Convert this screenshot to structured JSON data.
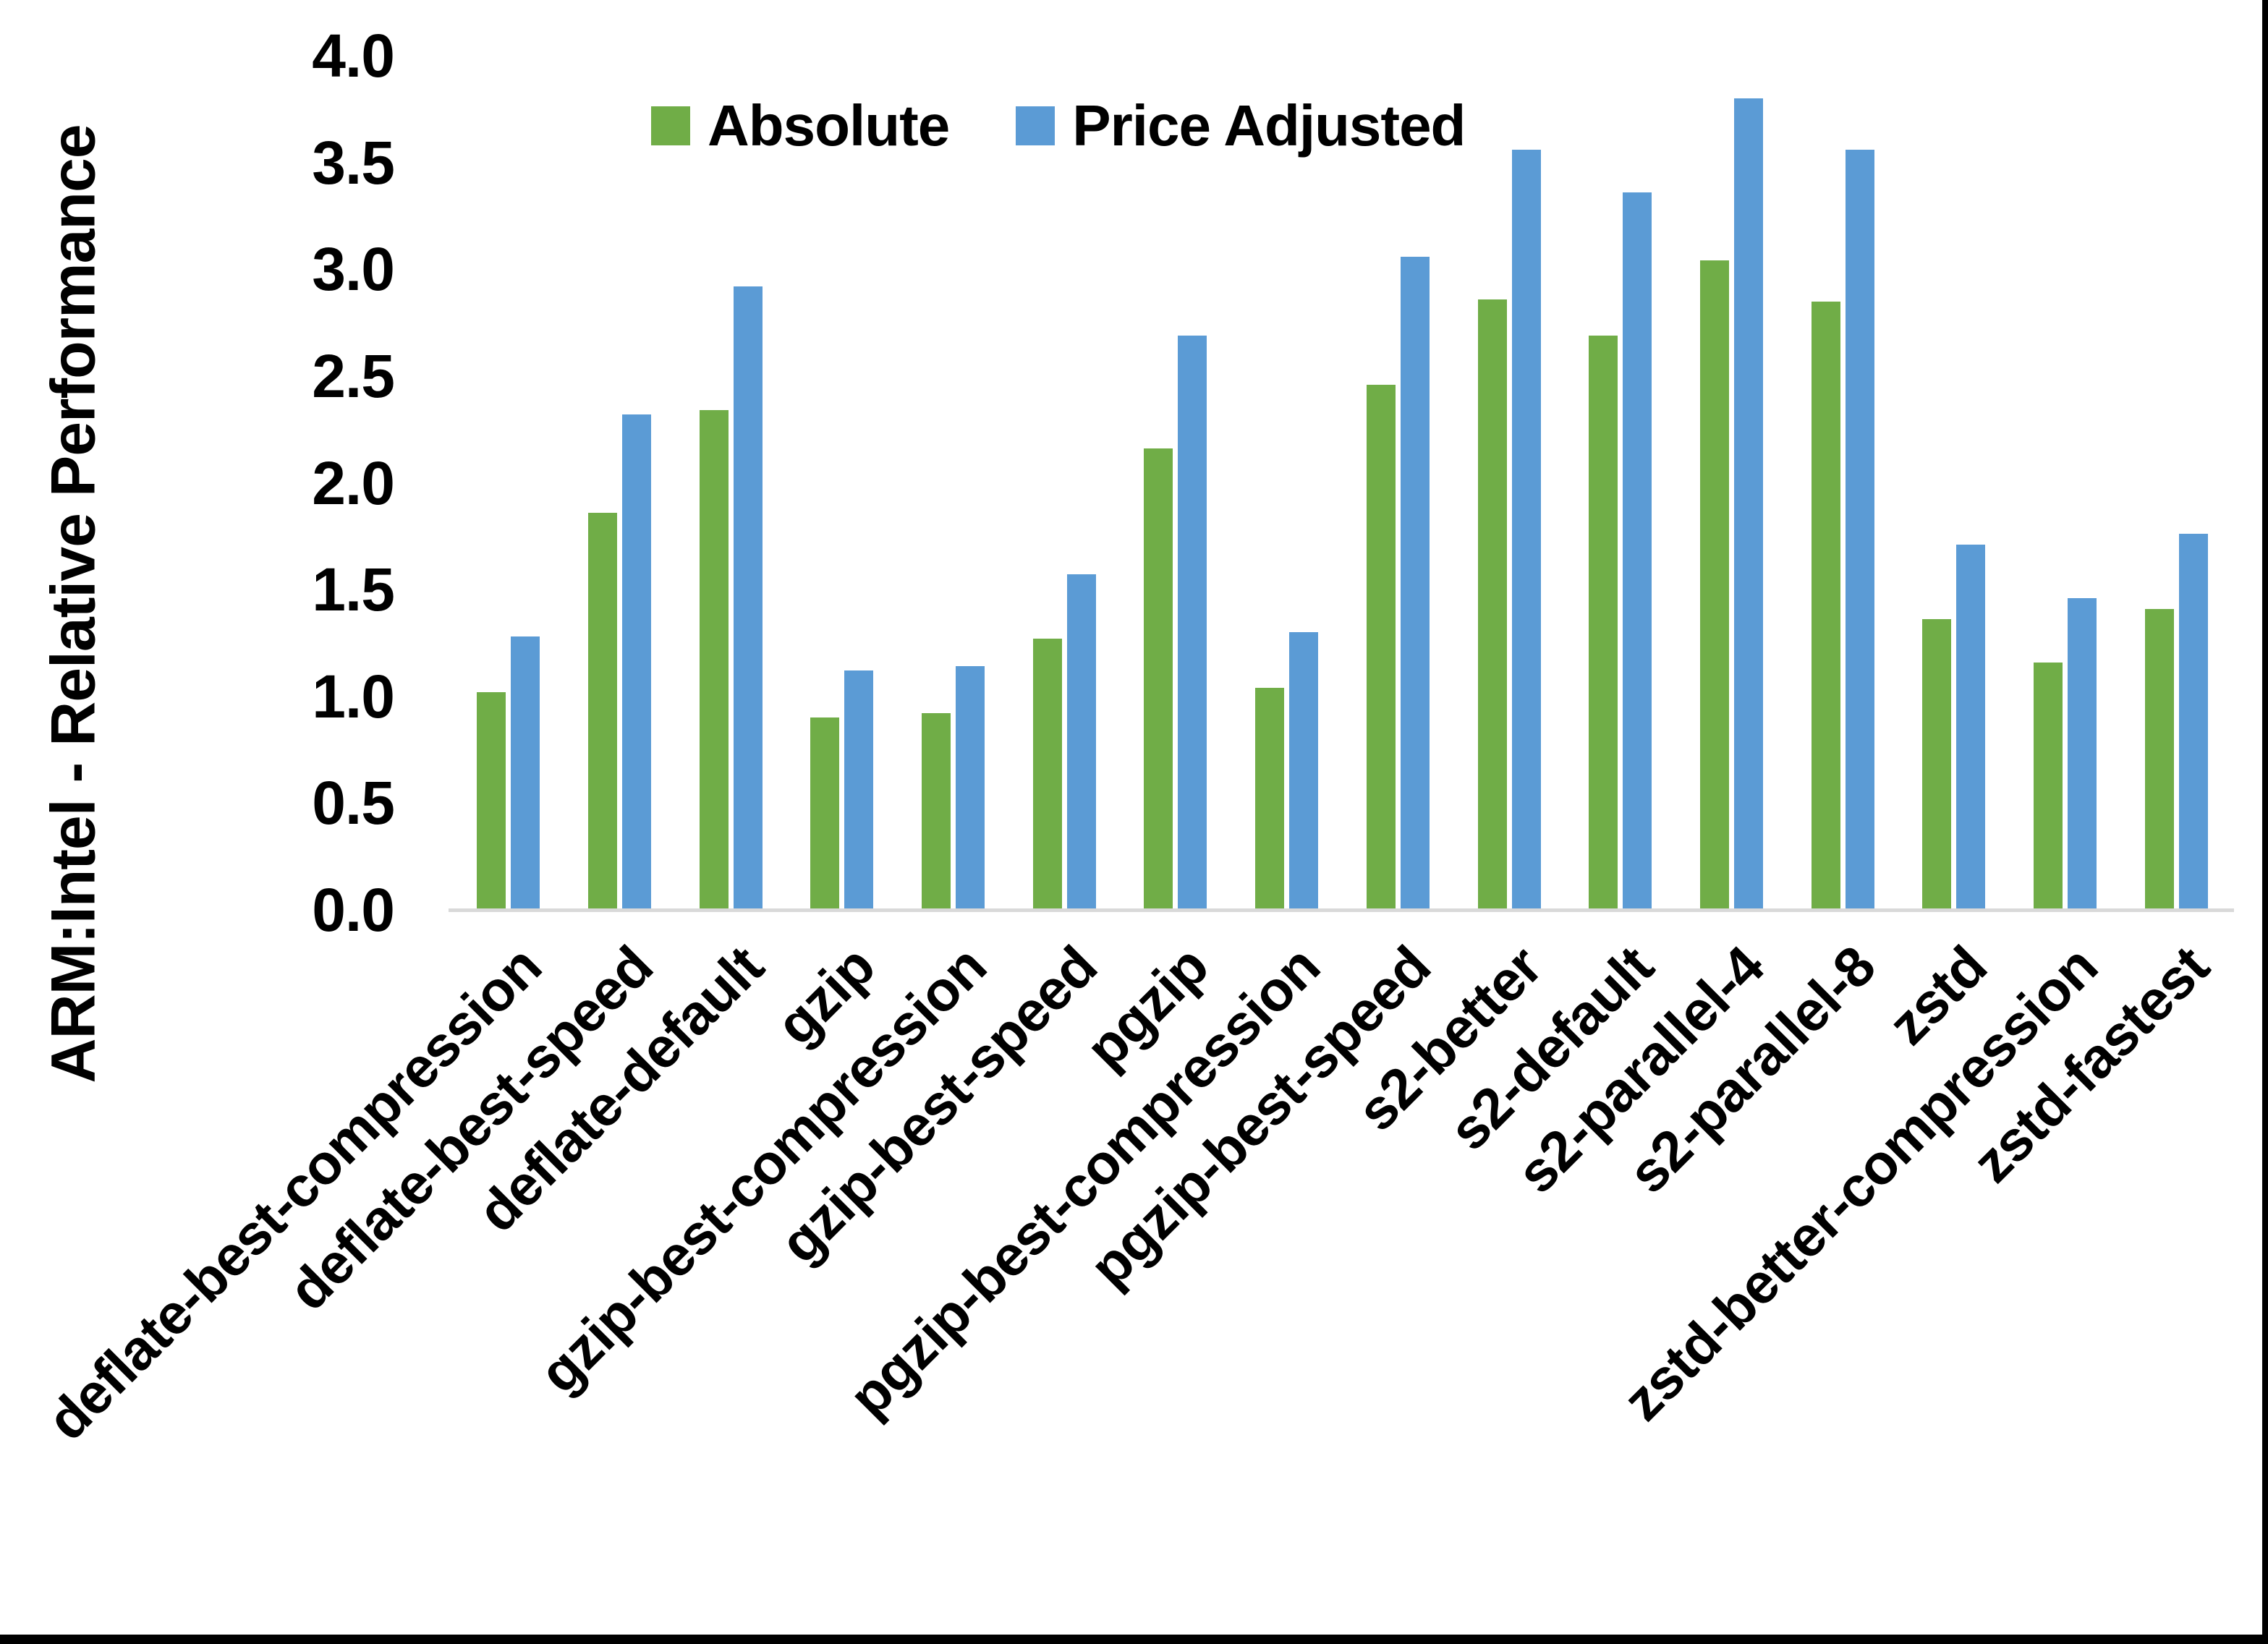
{
  "chart_data": {
    "type": "bar",
    "title": "",
    "ylabel": "ARM:Intel - Relative Performance",
    "xlabel": "",
    "ylim": [
      0.0,
      4.0
    ],
    "ytick_step": 0.5,
    "yticks": [
      "4.0",
      "3.5",
      "3.0",
      "2.5",
      "2.0",
      "1.5",
      "1.0",
      "0.5",
      "0.0"
    ],
    "grid": false,
    "legend_position": "top-inside",
    "categories": [
      "deflate-best-compression",
      "deflate-best-speed",
      "deflate-default",
      "gzip",
      "gzip-best-compression",
      "gzip-best-speed",
      "pgzip",
      "pgzip-best-compression",
      "pgzip-best-speed",
      "s2-better",
      "s2-default",
      "s2-parallel-4",
      "s2-parallel-8",
      "zstd",
      "zstd-better-compression",
      "zstd-fastest"
    ],
    "series": [
      {
        "name": "Absolute",
        "color": "#70AD47",
        "values": [
          1.02,
          1.86,
          2.34,
          0.9,
          0.92,
          1.27,
          2.16,
          1.04,
          2.46,
          2.86,
          2.69,
          3.04,
          2.85,
          1.36,
          1.16,
          1.41
        ]
      },
      {
        "name": "Price Adjusted",
        "color": "#5B9BD5",
        "values": [
          1.28,
          2.32,
          2.92,
          1.12,
          1.14,
          1.57,
          2.69,
          1.3,
          3.06,
          3.56,
          3.36,
          3.8,
          3.56,
          1.71,
          1.46,
          1.76
        ]
      }
    ],
    "colors": {
      "axis_line": "#D9D9D9",
      "text": "#000000",
      "background": "#FFFFFF",
      "frame_border": "#000000"
    }
  }
}
